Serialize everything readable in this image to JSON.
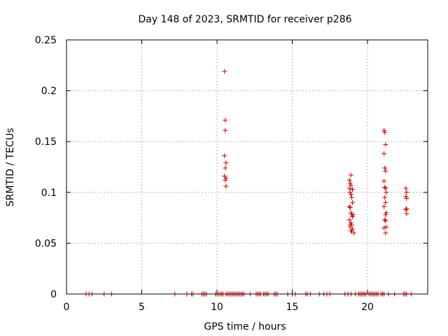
{
  "chart_data": {
    "type": "scatter",
    "title": "Day 148 of 2023, SRMTID for receiver p286",
    "xlabel": "GPS time / hours",
    "ylabel": "SRMTID / TECUs",
    "xlim": [
      0,
      24
    ],
    "ylim": [
      0,
      0.25
    ],
    "xticks": [
      0,
      5,
      10,
      15,
      20
    ],
    "xtick_labels": [
      "0",
      "5",
      "10",
      "15",
      "20"
    ],
    "yticks": [
      0,
      0.05,
      0.1,
      0.15,
      0.2,
      0.25
    ],
    "ytick_labels": [
      "0",
      "0.05",
      "0.1",
      "0.15",
      "0.2",
      "0.25"
    ],
    "grid": true,
    "marker": "+",
    "color": "#cc0000",
    "series": [
      {
        "name": "SRMTID",
        "x": [
          1.3,
          1.5,
          1.7,
          2.5,
          3.0,
          7.2,
          8.0,
          8.3,
          8.4,
          9.0,
          9.1,
          9.2,
          9.3,
          9.9,
          10.0,
          10.1,
          10.2,
          10.3,
          10.4,
          10.6,
          10.7,
          10.8,
          10.9,
          11.0,
          11.1,
          11.2,
          11.3,
          11.4,
          11.5,
          11.6,
          11.7,
          11.8,
          12.2,
          12.6,
          12.7,
          12.8,
          12.9,
          13.1,
          13.2,
          13.3,
          13.4,
          13.8,
          13.9,
          14.0,
          14.7,
          15.0,
          15.2,
          15.9,
          16.0,
          16.2,
          16.8,
          17.1,
          17.3,
          17.5,
          18.5,
          18.7,
          18.9,
          19.2,
          19.4,
          19.5,
          19.6,
          19.7,
          19.8,
          19.9,
          20.1,
          20.2,
          20.3,
          20.4,
          20.5,
          20.6,
          20.7,
          20.9,
          21.0,
          21.1,
          21.4,
          21.8,
          22.4,
          22.5,
          22.6,
          22.9,
          10.5,
          10.55,
          10.55,
          10.5,
          10.6,
          10.55,
          10.5,
          10.6,
          10.55,
          10.6,
          18.8,
          18.85,
          18.9,
          18.8,
          19.0,
          18.85,
          18.9,
          18.95,
          19.0,
          18.8,
          18.85,
          18.9,
          18.95,
          19.0,
          18.8,
          18.9,
          18.95,
          18.85,
          19.0,
          18.9,
          19.1,
          18.95,
          18.85,
          19.05,
          18.9,
          21.1,
          21.15,
          21.2,
          21.1,
          21.15,
          21.2,
          21.1,
          21.15,
          21.2,
          21.25,
          21.15,
          21.2,
          21.1,
          21.25,
          21.2,
          21.15,
          21.2,
          21.25,
          21.1,
          21.2,
          22.55,
          22.6,
          22.55,
          22.6,
          22.6,
          22.55,
          22.6
        ],
        "y": [
          0,
          0,
          0,
          0,
          0,
          0,
          0,
          0,
          0,
          0,
          0,
          0,
          0,
          0,
          0,
          0,
          0,
          0,
          0,
          0,
          0,
          0,
          0,
          0,
          0,
          0,
          0,
          0,
          0,
          0,
          0,
          0,
          0,
          0,
          0,
          0,
          0,
          0,
          0,
          0,
          0,
          0,
          0,
          0,
          0,
          0,
          0,
          0,
          0,
          0,
          0,
          0,
          0,
          0,
          0,
          0,
          0,
          0,
          0,
          0,
          0,
          0,
          0,
          0,
          0,
          0,
          0,
          0,
          0,
          0,
          0,
          0,
          0,
          0,
          0,
          0,
          0,
          0,
          0,
          0,
          0.219,
          0.171,
          0.161,
          0.136,
          0.129,
          0.124,
          0.116,
          0.114,
          0.112,
          0.106,
          0.112,
          0.109,
          0.107,
          0.104,
          0.103,
          0.1,
          0.098,
          0.095,
          0.09,
          0.086,
          0.085,
          0.08,
          0.078,
          0.076,
          0.073,
          0.07,
          0.068,
          0.066,
          0.064,
          0.062,
          0.06,
          0.062,
          0.068,
          0.078,
          0.117,
          0.161,
          0.159,
          0.147,
          0.138,
          0.124,
          0.121,
          0.111,
          0.105,
          0.104,
          0.1,
          0.095,
          0.09,
          0.086,
          0.08,
          0.078,
          0.073,
          0.072,
          0.066,
          0.065,
          0.06,
          0.104,
          0.1,
          0.096,
          0.094,
          0.084,
          0.083,
          0.079
        ]
      }
    ]
  }
}
